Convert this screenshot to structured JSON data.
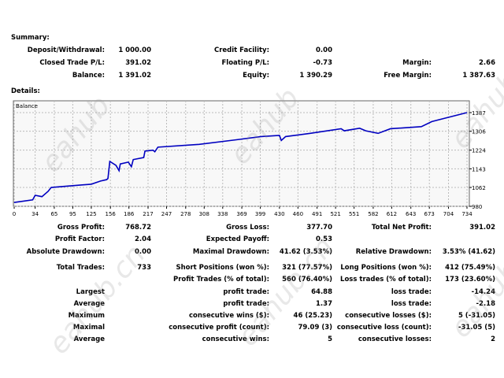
{
  "watermark": "eahub.cn",
  "summary": {
    "title": "Summary:",
    "rows": [
      [
        [
          "Deposit/Withdrawal:",
          "1 000.00"
        ],
        [
          "Credit Facility:",
          "0.00"
        ],
        [
          "",
          ""
        ]
      ],
      [
        [
          "Closed Trade P/L:",
          "391.02"
        ],
        [
          "Floating P/L:",
          "-0.73"
        ],
        [
          "Margin:",
          "2.66"
        ]
      ],
      [
        [
          "Balance:",
          "1 391.02"
        ],
        [
          "Equity:",
          "1 390.29"
        ],
        [
          "Free Margin:",
          "1 387.63"
        ]
      ]
    ]
  },
  "details": {
    "title": "Details:",
    "rows": [
      [
        [
          "Gross Profit:",
          "768.72"
        ],
        [
          "Gross Loss:",
          "377.70"
        ],
        [
          "Total Net Profit:",
          "391.02"
        ]
      ],
      [
        [
          "Profit Factor:",
          "2.04"
        ],
        [
          "Expected Payoff:",
          "0.53"
        ],
        [
          "",
          ""
        ]
      ],
      [
        [
          "Absolute Drawdown:",
          "0.00"
        ],
        [
          "Maximal Drawdown:",
          "41.62 (3.53%)"
        ],
        [
          "Relative Drawdown:",
          "3.53% (41.62)"
        ]
      ],
      [
        [
          "Total Trades:",
          "733"
        ],
        [
          "Short Positions (won %):",
          "321 (77.57%)"
        ],
        [
          "Long Positions (won %):",
          "412 (75.49%)"
        ]
      ],
      [
        [
          "",
          ""
        ],
        [
          "Profit Trades (% of total):",
          "560 (76.40%)"
        ],
        [
          "Loss trades (% of total):",
          "173 (23.60%)"
        ]
      ],
      [
        [
          "Largest",
          ""
        ],
        [
          "profit trade:",
          "64.88"
        ],
        [
          "loss trade:",
          "-14.24"
        ]
      ],
      [
        [
          "Average",
          ""
        ],
        [
          "profit trade:",
          "1.37"
        ],
        [
          "loss trade:",
          "-2.18"
        ]
      ],
      [
        [
          "Maximum",
          ""
        ],
        [
          "consecutive wins ($):",
          "46 (25.23)"
        ],
        [
          "consecutive losses ($):",
          "5 (-31.05)"
        ]
      ],
      [
        [
          "Maximal",
          ""
        ],
        [
          "consecutive profit (count):",
          "79.09 (3)"
        ],
        [
          "consecutive loss (count):",
          "-31.05 (5)"
        ]
      ],
      [
        [
          "Average",
          ""
        ],
        [
          "consecutive wins:",
          "5"
        ],
        [
          "consecutive losses:",
          "2"
        ]
      ]
    ]
  },
  "chart_data": {
    "type": "line",
    "title": "Balance",
    "line_color": "#0000c0",
    "xticks": [
      0,
      34,
      65,
      95,
      125,
      156,
      186,
      217,
      247,
      278,
      308,
      338,
      369,
      399,
      430,
      460,
      491,
      521,
      551,
      582,
      612,
      643,
      673,
      704,
      734
    ],
    "yticks": [
      980,
      1062,
      1143,
      1224,
      1306,
      1387
    ],
    "xlim": [
      0,
      740
    ],
    "ylim": [
      980,
      1400
    ],
    "series": [
      {
        "name": "Balance",
        "points": [
          [
            0,
            997
          ],
          [
            30,
            1008
          ],
          [
            34,
            1028
          ],
          [
            45,
            1022
          ],
          [
            55,
            1045
          ],
          [
            60,
            1062
          ],
          [
            110,
            1073
          ],
          [
            125,
            1076
          ],
          [
            140,
            1090
          ],
          [
            150,
            1096
          ],
          [
            152,
            1101
          ],
          [
            155,
            1175
          ],
          [
            165,
            1158
          ],
          [
            170,
            1135
          ],
          [
            172,
            1164
          ],
          [
            185,
            1172
          ],
          [
            190,
            1152
          ],
          [
            193,
            1183
          ],
          [
            210,
            1192
          ],
          [
            212,
            1220
          ],
          [
            225,
            1224
          ],
          [
            228,
            1217
          ],
          [
            233,
            1237
          ],
          [
            300,
            1249
          ],
          [
            360,
            1269
          ],
          [
            400,
            1283
          ],
          [
            430,
            1288
          ],
          [
            433,
            1266
          ],
          [
            440,
            1283
          ],
          [
            480,
            1297
          ],
          [
            530,
            1317
          ],
          [
            535,
            1308
          ],
          [
            560,
            1319
          ],
          [
            570,
            1308
          ],
          [
            590,
            1297
          ],
          [
            610,
            1317
          ],
          [
            660,
            1326
          ],
          [
            677,
            1348
          ],
          [
            700,
            1364
          ],
          [
            734,
            1387
          ]
        ]
      }
    ]
  }
}
